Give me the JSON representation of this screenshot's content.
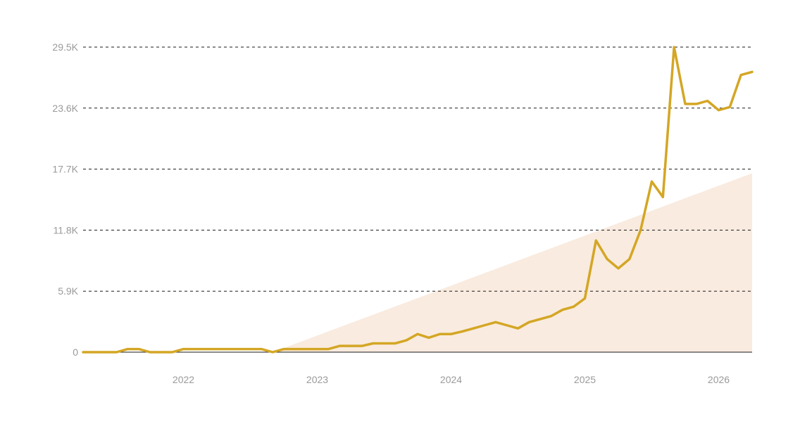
{
  "chart_data": {
    "type": "line",
    "title": "",
    "xlabel": "",
    "ylabel": "",
    "grid": true,
    "colors": {
      "line": "#d4a624",
      "area": "#f9ebdf"
    },
    "x_ticks": [
      "2022",
      "2023",
      "2024",
      "2025",
      "2026"
    ],
    "y_ticks": [
      "0",
      "5.9K",
      "11.8K",
      "17.7K",
      "23.6K",
      "29.5K"
    ],
    "y_tick_values": [
      0,
      5900,
      11800,
      17700,
      23600,
      29500
    ],
    "ylim": [
      0,
      29500
    ],
    "xlim": [
      "2021-04",
      "2026-03"
    ],
    "series": [
      {
        "values": [
          [
            "2021-04",
            0
          ],
          [
            "2021-05",
            0
          ],
          [
            "2021-06",
            0
          ],
          [
            "2021-07",
            0
          ],
          [
            "2021-08",
            300
          ],
          [
            "2021-09",
            300
          ],
          [
            "2021-10",
            0
          ],
          [
            "2021-11",
            0
          ],
          [
            "2021-12",
            0
          ],
          [
            "2022-01",
            300
          ],
          [
            "2022-02",
            300
          ],
          [
            "2022-03",
            300
          ],
          [
            "2022-04",
            300
          ],
          [
            "2022-05",
            300
          ],
          [
            "2022-06",
            300
          ],
          [
            "2022-07",
            300
          ],
          [
            "2022-08",
            300
          ],
          [
            "2022-09",
            0
          ],
          [
            "2022-10",
            300
          ],
          [
            "2022-11",
            300
          ],
          [
            "2022-12",
            300
          ],
          [
            "2023-01",
            300
          ],
          [
            "2023-02",
            300
          ],
          [
            "2023-03",
            600
          ],
          [
            "2023-04",
            600
          ],
          [
            "2023-05",
            600
          ],
          [
            "2023-06",
            850
          ],
          [
            "2023-07",
            850
          ],
          [
            "2023-08",
            850
          ],
          [
            "2023-09",
            1150
          ],
          [
            "2023-10",
            1750
          ],
          [
            "2023-11",
            1400
          ],
          [
            "2023-12",
            1750
          ],
          [
            "2024-01",
            1750
          ],
          [
            "2024-02",
            2000
          ],
          [
            "2024-03",
            2300
          ],
          [
            "2024-04",
            2600
          ],
          [
            "2024-05",
            2900
          ],
          [
            "2024-06",
            2600
          ],
          [
            "2024-07",
            2300
          ],
          [
            "2024-08",
            2900
          ],
          [
            "2024-09",
            3200
          ],
          [
            "2024-10",
            3500
          ],
          [
            "2024-11",
            4100
          ],
          [
            "2024-12",
            4400
          ],
          [
            "2025-01",
            5200
          ],
          [
            "2025-02",
            10800
          ],
          [
            "2025-03",
            9000
          ],
          [
            "2025-04",
            8100
          ],
          [
            "2025-05",
            9000
          ],
          [
            "2025-06",
            11800
          ],
          [
            "2025-07",
            16500
          ],
          [
            "2025-08",
            15000
          ],
          [
            "2025-09",
            29500
          ],
          [
            "2025-10",
            24000
          ],
          [
            "2025-11",
            24000
          ],
          [
            "2025-12",
            24300
          ],
          [
            "2026-01",
            23400
          ],
          [
            "2026-02",
            23700
          ],
          [
            "2026-03",
            26800
          ],
          [
            "2026-04",
            27100
          ]
        ]
      }
    ],
    "area": [
      [
        "2022-09",
        0
      ],
      [
        "2026-04",
        17300
      ]
    ]
  }
}
